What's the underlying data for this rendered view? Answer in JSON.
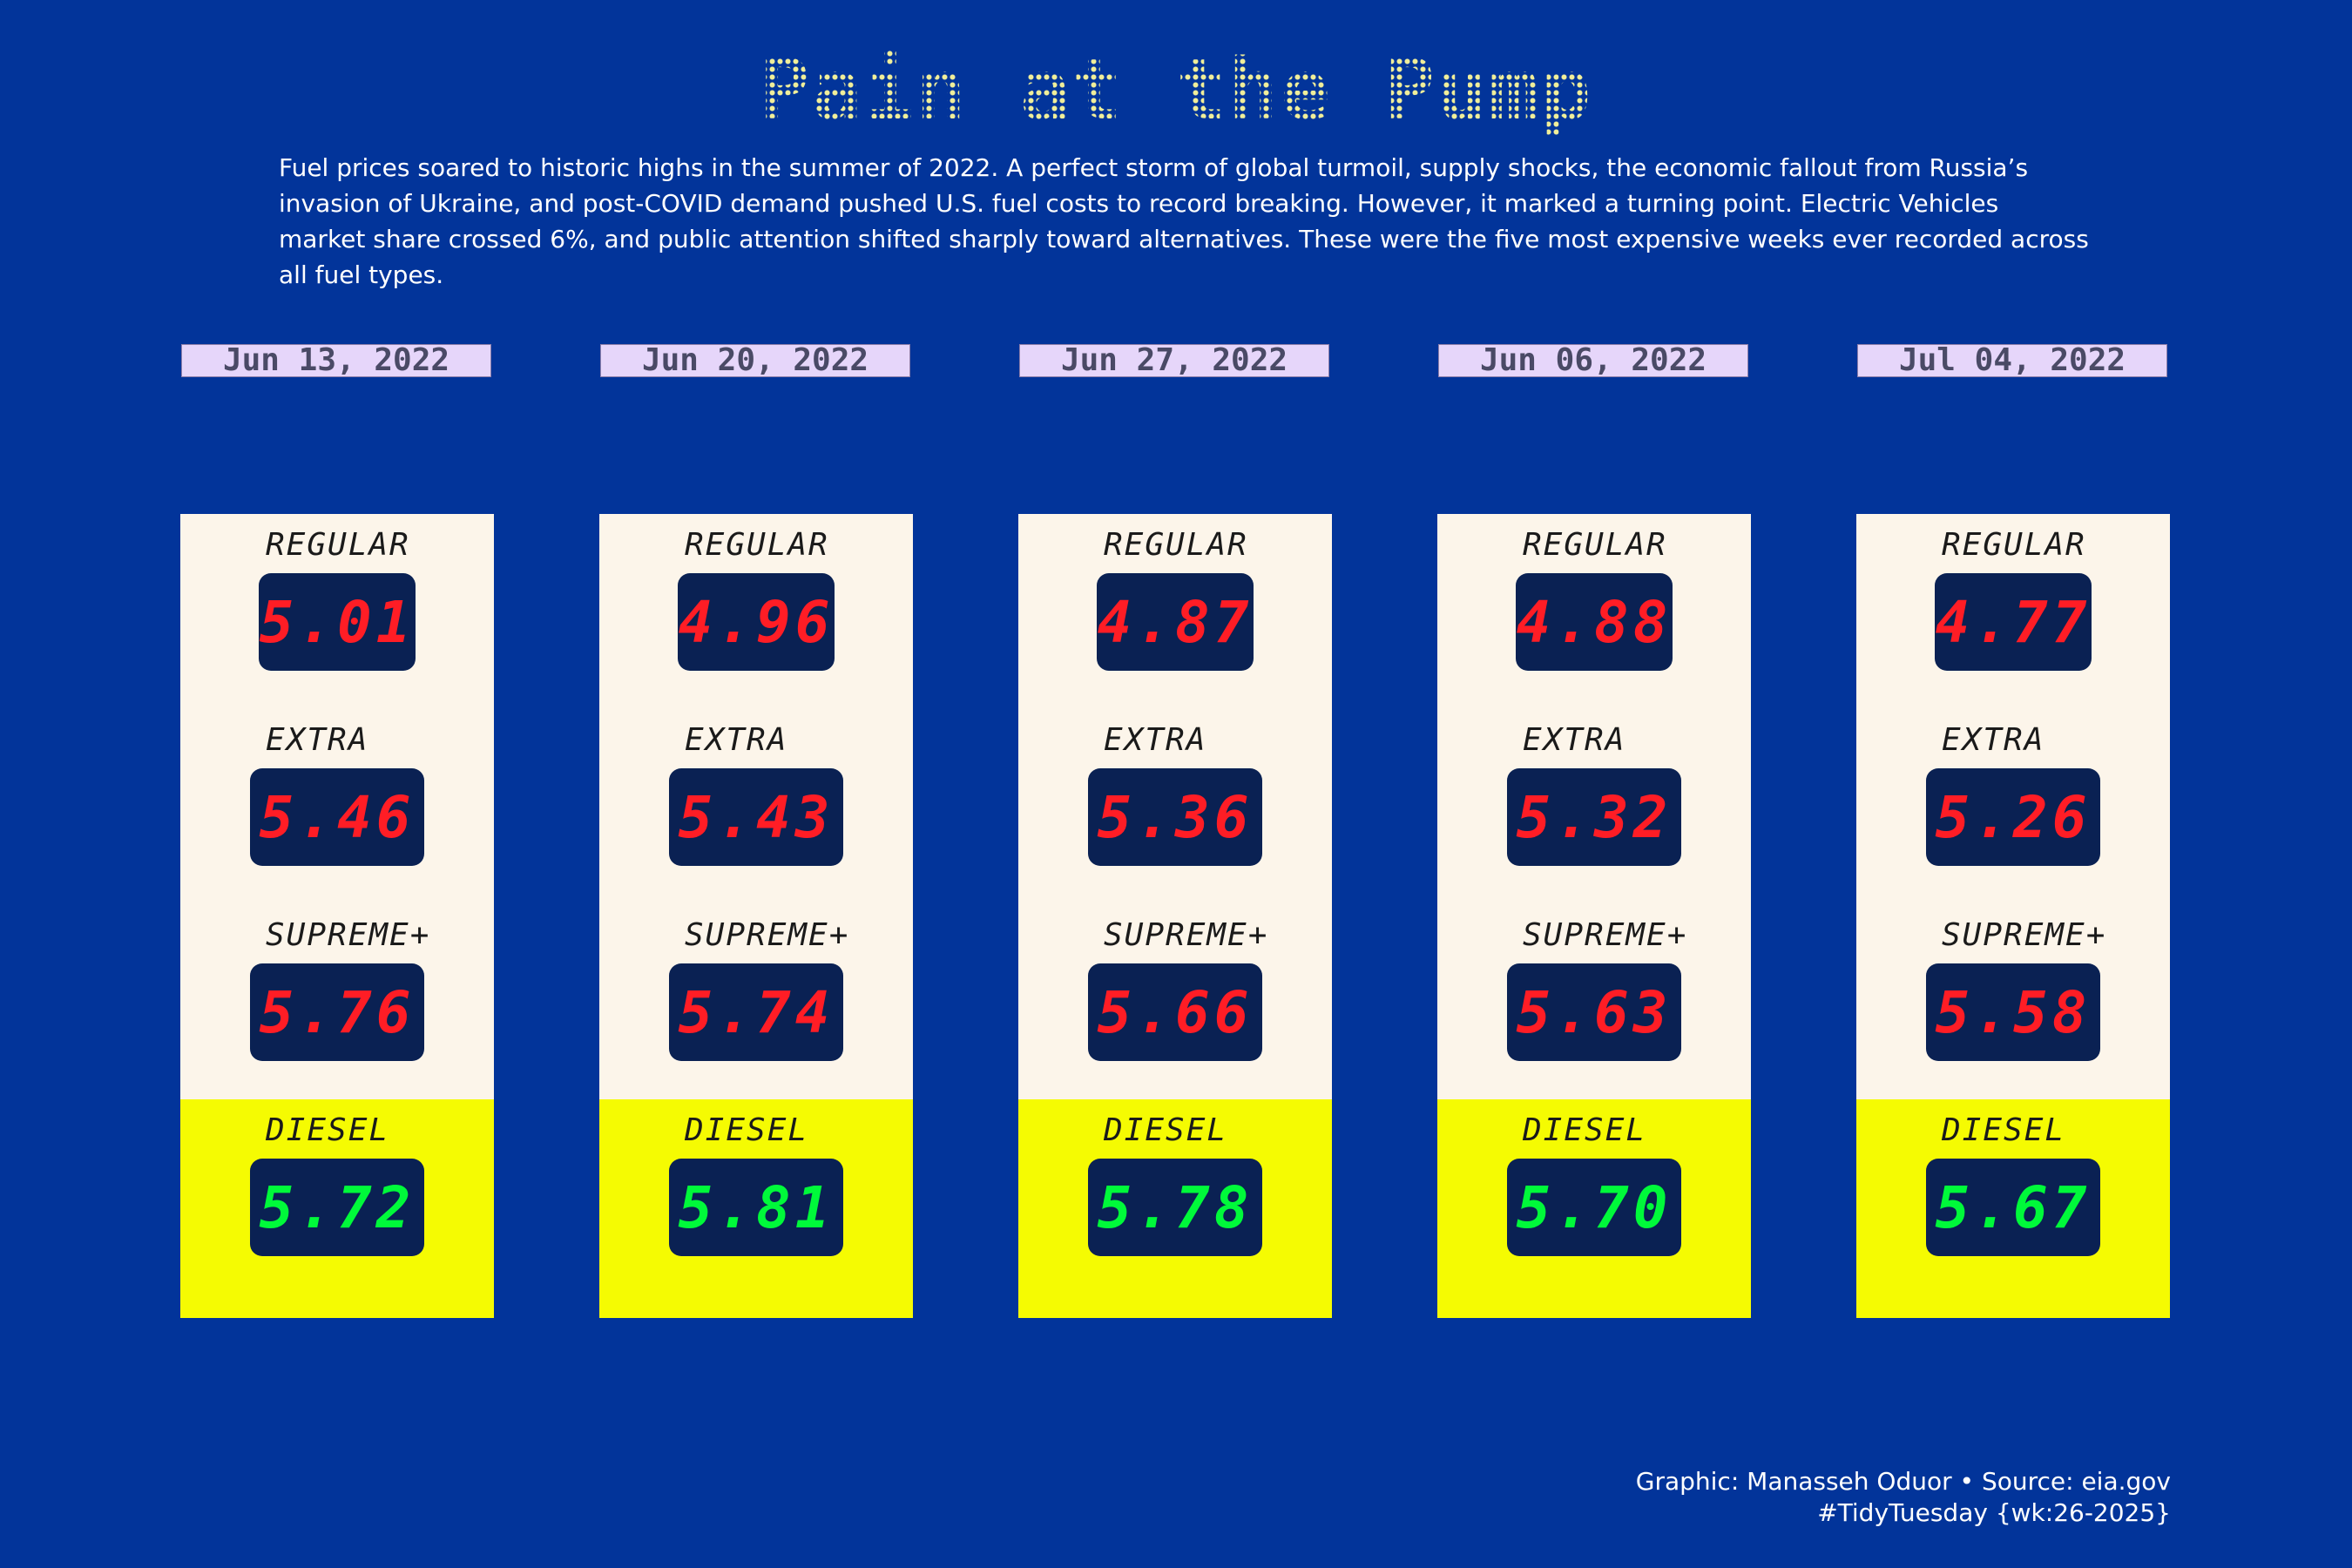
{
  "title": "Pain at the Pump",
  "subtitle": "Fuel prices soared to historic highs in the summer of 2022. A perfect storm of global turmoil, supply shocks, the economic fallout from Russia’s invasion of Ukraine, and post-COVID demand pushed U.S. fuel costs to record breaking. However, it marked a turning point. Electric Vehicles market share crossed 6%, and public attention shifted sharply toward alternatives. These were the five most expensive weeks ever recorded across all fuel types.",
  "credit": {
    "line1": "Graphic: Manasseh Oduor • Source: eia.gov",
    "line2": "#TidyTuesday {wk:26-2025}"
  },
  "colors": {
    "background": "#02349a",
    "card": "#fcf5ea",
    "diesel_card": "#f5fb02",
    "display": "#0a2153",
    "gasoline_price": "#ff1d25",
    "diesel_price": "#00f93a",
    "date_label": "#e6d6fa"
  },
  "chart_data": {
    "type": "table",
    "title": "Pain at the Pump",
    "categories": [
      "Jun 13, 2022",
      "Jun 20, 2022",
      "Jun 27, 2022",
      "Jun 06, 2022",
      "Jul 04, 2022"
    ],
    "series": [
      {
        "name": "REGULAR",
        "values": [
          "5.01",
          "4.96",
          "4.87",
          "4.88",
          "4.77"
        ]
      },
      {
        "name": "EXTRA",
        "values": [
          "5.46",
          "5.43",
          "5.36",
          "5.32",
          "5.26"
        ]
      },
      {
        "name": "SUPREME+",
        "values": [
          "5.76",
          "5.74",
          "5.66",
          "5.63",
          "5.58"
        ]
      },
      {
        "name": "DIESEL",
        "values": [
          "5.72",
          "5.81",
          "5.78",
          "5.70",
          "5.67"
        ]
      }
    ]
  }
}
